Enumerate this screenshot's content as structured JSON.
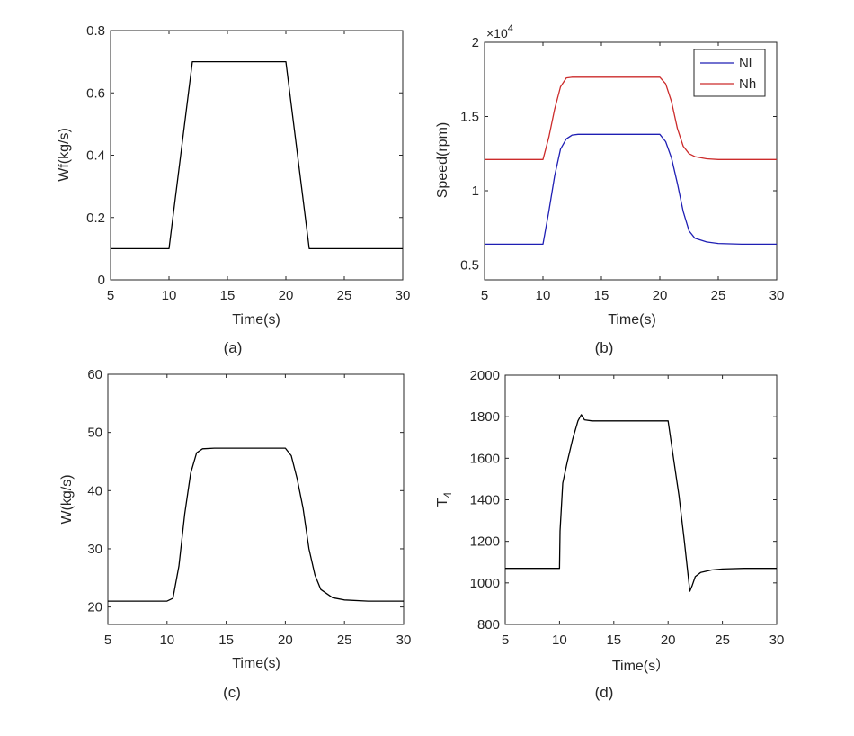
{
  "chart_data": [
    {
      "type": "line",
      "panel": "(a)",
      "caption": "(a)",
      "xlabel": "Time(s)",
      "ylabel": "Wf(kg/s)",
      "xlim": [
        5,
        30
      ],
      "ylim": [
        0,
        0.8
      ],
      "xticks": [
        5,
        10,
        15,
        20,
        25,
        30
      ],
      "yticks": [
        0,
        0.2,
        0.4,
        0.6,
        0.8
      ],
      "series": [
        {
          "name": "Wf",
          "color": "#000000",
          "x": [
            5,
            10,
            12,
            20,
            22,
            30
          ],
          "y": [
            0.1,
            0.1,
            0.7,
            0.7,
            0.1,
            0.1
          ]
        }
      ]
    },
    {
      "type": "line",
      "panel": "(b)",
      "caption": "(b)",
      "xlabel": "Time(s)",
      "ylabel": "Speed(rpm)",
      "multiplier": "×10",
      "multiplier_exp": "4",
      "xlim": [
        5,
        30
      ],
      "ylim": [
        0.4,
        2.0
      ],
      "xticks": [
        5,
        10,
        15,
        20,
        25,
        30
      ],
      "yticks": [
        0.5,
        1,
        1.5,
        2
      ],
      "legend": "top-right",
      "series": [
        {
          "name": "Nl",
          "color": "#1f1fb4",
          "x": [
            5,
            10,
            10.5,
            11,
            11.5,
            12,
            12.5,
            13,
            15,
            20,
            20.5,
            21,
            21.5,
            22,
            22.5,
            23,
            24,
            25,
            27,
            30
          ],
          "y": [
            0.64,
            0.64,
            0.86,
            1.1,
            1.28,
            1.35,
            1.375,
            1.38,
            1.38,
            1.38,
            1.33,
            1.22,
            1.05,
            0.86,
            0.73,
            0.68,
            0.655,
            0.645,
            0.64,
            0.64
          ]
        },
        {
          "name": "Nh",
          "color": "#cc2b2b",
          "x": [
            5,
            10,
            10.5,
            11,
            11.5,
            12,
            12.5,
            13,
            15,
            20,
            20.5,
            21,
            21.5,
            22,
            22.5,
            23,
            24,
            25,
            27,
            30
          ],
          "y": [
            1.21,
            1.21,
            1.36,
            1.55,
            1.7,
            1.76,
            1.765,
            1.765,
            1.765,
            1.765,
            1.72,
            1.6,
            1.42,
            1.3,
            1.25,
            1.23,
            1.215,
            1.21,
            1.21,
            1.21
          ]
        }
      ]
    },
    {
      "type": "line",
      "panel": "(c)",
      "caption": "(c)",
      "xlabel": "Time(s)",
      "ylabel": "W(kg/s)",
      "xlim": [
        5,
        30
      ],
      "ylim": [
        17,
        60
      ],
      "xticks": [
        5,
        10,
        15,
        20,
        25,
        30
      ],
      "yticks": [
        20,
        30,
        40,
        50,
        60
      ],
      "series": [
        {
          "name": "W",
          "color": "#000000",
          "x": [
            5,
            10,
            10.5,
            11,
            11.5,
            12,
            12.5,
            13,
            14,
            15,
            20,
            20.5,
            21,
            21.5,
            22,
            22.5,
            23,
            24,
            25,
            27,
            30
          ],
          "y": [
            21,
            21,
            21.5,
            27,
            36,
            43,
            46.5,
            47.2,
            47.3,
            47.3,
            47.3,
            46,
            42,
            37,
            30,
            25.5,
            23,
            21.6,
            21.2,
            21,
            21
          ]
        }
      ]
    },
    {
      "type": "line",
      "panel": "(d)",
      "caption": "(d)",
      "xlabel": "Time(s）",
      "ylabel": "T",
      "ylabel_sub": "4",
      "xlim": [
        5,
        30
      ],
      "ylim": [
        800,
        2000
      ],
      "xticks": [
        5,
        10,
        15,
        20,
        25,
        30
      ],
      "yticks": [
        800,
        1000,
        1200,
        1400,
        1600,
        1800,
        2000
      ],
      "series": [
        {
          "name": "T4",
          "color": "#000000",
          "x": [
            5,
            10,
            10.05,
            10.3,
            10.7,
            11.2,
            11.7,
            12,
            12.3,
            13,
            15,
            20,
            20.5,
            21,
            21.5,
            22,
            22.2,
            22.5,
            23,
            24,
            25,
            27,
            30
          ],
          "y": [
            1070,
            1070,
            1250,
            1480,
            1580,
            1690,
            1780,
            1810,
            1785,
            1780,
            1780,
            1780,
            1600,
            1420,
            1200,
            960,
            985,
            1030,
            1050,
            1062,
            1067,
            1070,
            1070
          ]
        }
      ]
    }
  ]
}
